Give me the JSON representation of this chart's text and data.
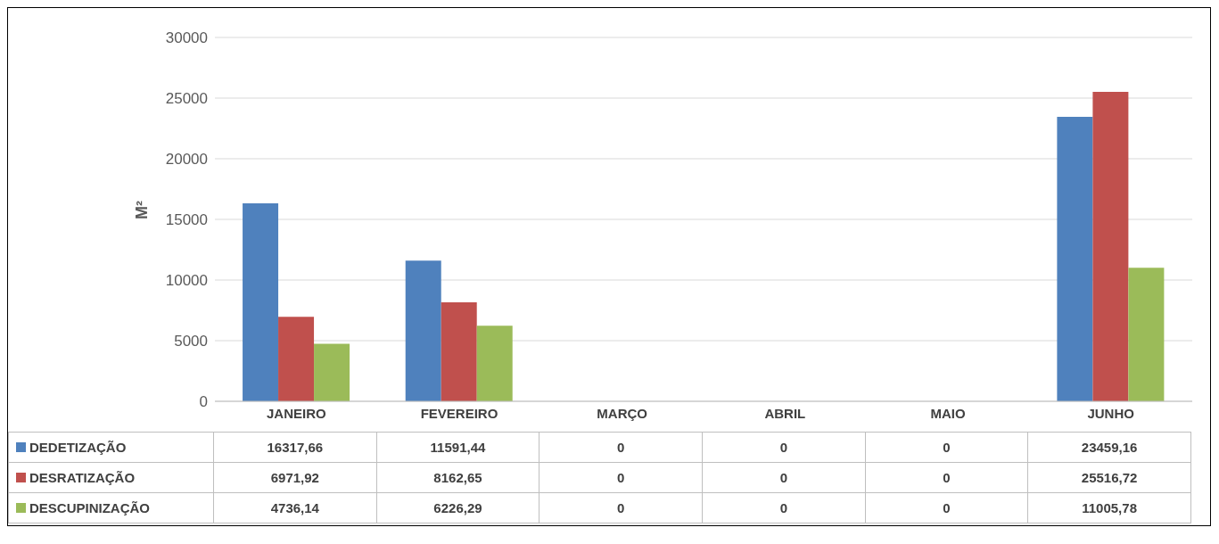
{
  "chart_data": {
    "type": "bar",
    "ylabel": "M²",
    "categories": [
      "JANEIRO",
      "FEVEREIRO",
      "MARÇO",
      "ABRIL",
      "MAIO",
      "JUNHO"
    ],
    "series": [
      {
        "name": "DEDETIZAÇÃO",
        "color": "#4f81bd",
        "values": [
          16317.66,
          11591.44,
          0,
          0,
          0,
          23459.16
        ],
        "value_labels": [
          "16317,66",
          "11591,44",
          "0",
          "0",
          "0",
          "23459,16"
        ]
      },
      {
        "name": "DESRATIZAÇÃO",
        "color": "#c0504d",
        "values": [
          6971.92,
          8162.65,
          0,
          0,
          0,
          25516.72
        ],
        "value_labels": [
          "6971,92",
          "8162,65",
          "0",
          "0",
          "0",
          "25516,72"
        ]
      },
      {
        "name": "DESCUPINIZAÇÃO",
        "color": "#9bbb59",
        "values": [
          4736.14,
          6226.29,
          0,
          0,
          0,
          11005.78
        ],
        "value_labels": [
          "4736,14",
          "6226,29",
          "0",
          "0",
          "0",
          "11005,78"
        ]
      }
    ],
    "ylim": [
      0,
      30000
    ],
    "yticks": [
      0,
      5000,
      10000,
      15000,
      20000,
      25000,
      30000
    ],
    "grid": "y",
    "legend": "bottom"
  }
}
